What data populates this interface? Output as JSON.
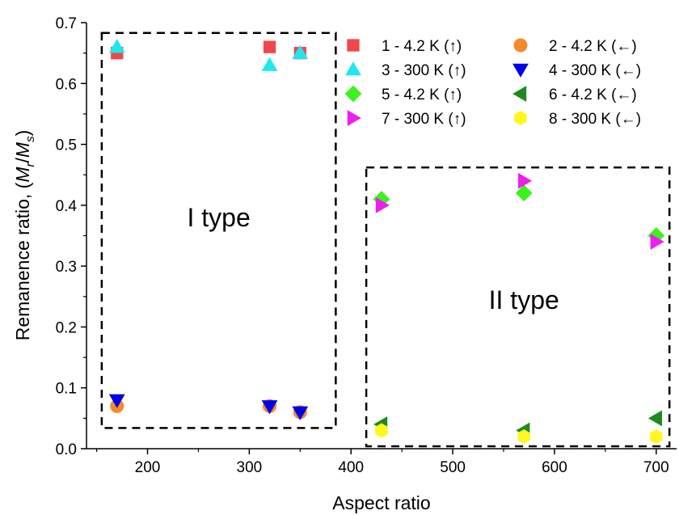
{
  "chart_data": {
    "type": "scatter",
    "xlabel": "Aspect ratio",
    "ylabel": {
      "prefix": "Remanence ratio, (",
      "m1": "M",
      "sub1": "r",
      "slash": "/",
      "m2": "M",
      "sub2": "s",
      "suffix": ")"
    },
    "xlim": [
      140,
      720
    ],
    "ylim": [
      0,
      0.7
    ],
    "xticks": [
      200,
      300,
      400,
      500,
      600,
      700
    ],
    "yticks": [
      "0.0",
      "0.1",
      "0.2",
      "0.3",
      "0.4",
      "0.5",
      "0.6",
      "0.7"
    ],
    "grid": false,
    "legend_position": "top-right",
    "series": [
      {
        "name": "1 - 4.2 K (↑)",
        "marker": "square",
        "color": "#f0474b",
        "points": [
          [
            170,
            0.65
          ],
          [
            320,
            0.66
          ],
          [
            350,
            0.65
          ]
        ]
      },
      {
        "name": "2 - 4.2 K (←)",
        "marker": "circle",
        "color": "#f7892d",
        "points": [
          [
            170,
            0.07
          ],
          [
            320,
            0.07
          ],
          [
            350,
            0.06
          ]
        ]
      },
      {
        "name": "3 - 300 K (↑)",
        "marker": "triangle-up",
        "color": "#1ee8ee",
        "points": [
          [
            170,
            0.66
          ],
          [
            320,
            0.63
          ],
          [
            350,
            0.65
          ]
        ]
      },
      {
        "name": "4 - 300 K (←)",
        "marker": "triangle-down",
        "color": "#0000e8",
        "points": [
          [
            170,
            0.08
          ],
          [
            320,
            0.07
          ],
          [
            350,
            0.06
          ]
        ]
      },
      {
        "name": "5 - 4.2 K (↑)",
        "marker": "diamond",
        "color": "#3ef01e",
        "points": [
          [
            430,
            0.41
          ],
          [
            570,
            0.42
          ],
          [
            700,
            0.35
          ]
        ]
      },
      {
        "name": "6 - 4.2 K (←)",
        "marker": "triangle-left",
        "color": "#1e8a1e",
        "points": [
          [
            430,
            0.04
          ],
          [
            570,
            0.03
          ],
          [
            700,
            0.05
          ]
        ]
      },
      {
        "name": "7 - 300 K (↑)",
        "marker": "triangle-right",
        "color": "#ee1eee",
        "points": [
          [
            430,
            0.4
          ],
          [
            570,
            0.44
          ],
          [
            700,
            0.34
          ]
        ]
      },
      {
        "name": "8 - 300 K (←)",
        "marker": "hexagon",
        "color": "#fff81e",
        "points": [
          [
            430,
            0.03
          ],
          [
            570,
            0.02
          ],
          [
            700,
            0.02
          ]
        ]
      }
    ],
    "regions": [
      {
        "label": "I type",
        "x": [
          155,
          385
        ],
        "y": [
          0.034,
          0.683
        ],
        "label_at": [
          270,
          0.365
        ]
      },
      {
        "label": "II type",
        "x": [
          415,
          713
        ],
        "y": [
          0.004,
          0.462
        ],
        "label_at": [
          570,
          0.23
        ]
      }
    ]
  }
}
